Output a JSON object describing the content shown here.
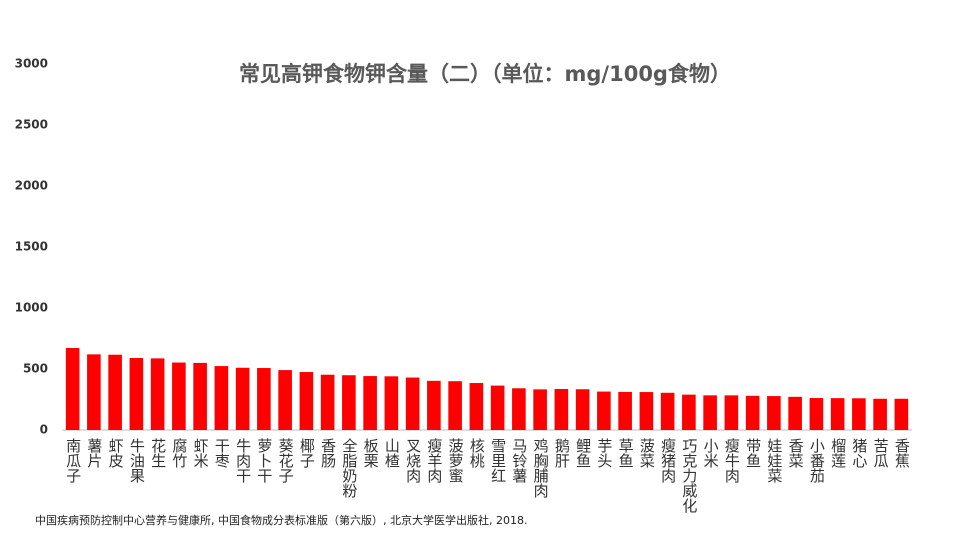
{
  "chart_data": {
    "type": "bar",
    "title": "常见高钾食物钾含量（二）（单位：mg/100g食物）",
    "source": "中国疾病预防控制中心营养与健康所, 中国食物成分表标准版（第六版）, 北京大学医学出版社, 2018.",
    "categories": [
      "南瓜子",
      "薯片",
      "虾皮",
      "牛油果",
      "花生",
      "腐竹",
      "虾米",
      "干枣",
      "牛肉干",
      "萝卜干",
      "葵花子",
      "椰子",
      "香肠",
      "全脂奶粉",
      "板栗",
      "山楂",
      "叉烧肉",
      "瘦羊肉",
      "菠萝蜜",
      "核桃",
      "雪里红",
      "马铃薯",
      "鸡胸脯肉",
      "鹅肝",
      "鲤鱼",
      "芋头",
      "草鱼",
      "菠菜",
      "瘦猪肉",
      "巧克力威化",
      "小米",
      "瘦牛肉",
      "带鱼",
      "娃娃菜",
      "香菜",
      "小番茄",
      "榴莲",
      "猪心",
      "苦瓜",
      "香蕉"
    ],
    "values": [
      672,
      620,
      617,
      590,
      587,
      553,
      550,
      524,
      510,
      508,
      491,
      475,
      453,
      449,
      442,
      440,
      430,
      403,
      400,
      385,
      364,
      342,
      333,
      336,
      334,
      315,
      312,
      311,
      305,
      290,
      284,
      284,
      280,
      278,
      272,
      262,
      261,
      260,
      256,
      256
    ],
    "color": "#ff0000",
    "ylim": [
      0,
      3000
    ],
    "yticks": [
      0,
      500,
      1000,
      1500,
      2000,
      2500,
      3000
    ],
    "grid": false
  }
}
